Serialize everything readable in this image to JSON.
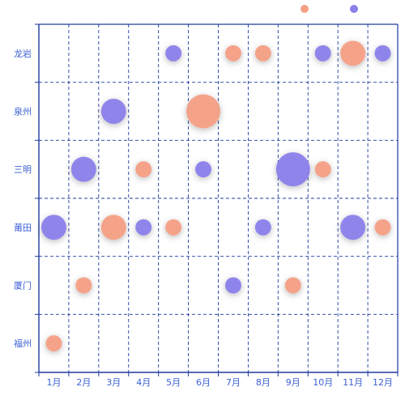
{
  "chart_data": {
    "type": "scatter",
    "title": "",
    "xlabel": "",
    "ylabel": "",
    "x_categories": [
      "1月",
      "2月",
      "3月",
      "4月",
      "5月",
      "6月",
      "7月",
      "8月",
      "9月",
      "10月",
      "11月",
      "12月"
    ],
    "y_categories": [
      "福州",
      "厦门",
      "莆田",
      "三明",
      "泉州",
      "龙岩"
    ],
    "grid": true,
    "legend": {
      "position": "top-right",
      "entries": [
        "",
        ""
      ]
    },
    "series": [
      {
        "color": "#f4a085",
        "points": [
          {
            "x": "1月",
            "y": "福州",
            "size": 3
          },
          {
            "x": "2月",
            "y": "厦门",
            "size": 3
          },
          {
            "x": "3月",
            "y": "莆田",
            "size": 4
          },
          {
            "x": "4月",
            "y": "三明",
            "size": 3
          },
          {
            "x": "5月",
            "y": "莆田",
            "size": 3
          },
          {
            "x": "6月",
            "y": "泉州",
            "size": 5
          },
          {
            "x": "7月",
            "y": "龙岩",
            "size": 3
          },
          {
            "x": "8月",
            "y": "龙岩",
            "size": 3
          },
          {
            "x": "9月",
            "y": "厦门",
            "size": 3
          },
          {
            "x": "10月",
            "y": "三明",
            "size": 3
          },
          {
            "x": "11月",
            "y": "龙岩",
            "size": 4
          },
          {
            "x": "12月",
            "y": "莆田",
            "size": 3
          }
        ]
      },
      {
        "color": "#8b80ea",
        "points": [
          {
            "x": "1月",
            "y": "莆田",
            "size": 4
          },
          {
            "x": "2月",
            "y": "三明",
            "size": 4
          },
          {
            "x": "3月",
            "y": "泉州",
            "size": 4
          },
          {
            "x": "4月",
            "y": "莆田",
            "size": 3
          },
          {
            "x": "5月",
            "y": "龙岩",
            "size": 3
          },
          {
            "x": "6月",
            "y": "三明",
            "size": 3
          },
          {
            "x": "7月",
            "y": "厦门",
            "size": 3
          },
          {
            "x": "8月",
            "y": "莆田",
            "size": 3
          },
          {
            "x": "9月",
            "y": "三明",
            "size": 5
          },
          {
            "x": "10月",
            "y": "龙岩",
            "size": 3
          },
          {
            "x": "11月",
            "y": "莆田",
            "size": 4
          },
          {
            "x": "12月",
            "y": "龙岩",
            "size": 3
          }
        ]
      }
    ]
  },
  "colors": {
    "axis": "#1f3a9e",
    "grid": "#1f3a9e",
    "label": "#3b5fd4"
  }
}
